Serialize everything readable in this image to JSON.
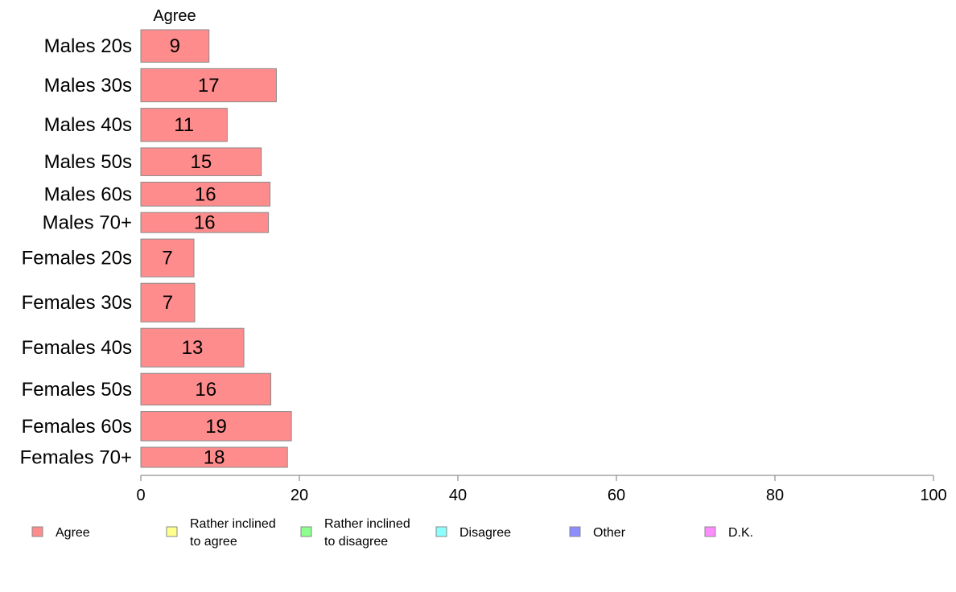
{
  "chart_data": {
    "type": "bar",
    "orientation": "horizontal",
    "stacked": true,
    "segment_label": "Agree",
    "categories": [
      "Males 20s",
      "Males 30s",
      "Males 40s",
      "Males 50s",
      "Males 60s",
      "Males 70+",
      "Females 20s",
      "Females 30s",
      "Females 40s",
      "Females 50s",
      "Females 60s",
      "Females 70+"
    ],
    "relative_widths": [
      42,
      43,
      43,
      36,
      31,
      26,
      49,
      50,
      50,
      41,
      38,
      26
    ],
    "series": [
      {
        "name": "Agree",
        "values": [
          8.6,
          17.1,
          10.9,
          15.2,
          16.3,
          16.1,
          6.7,
          6.8,
          13.0,
          16.4,
          19.0,
          18.5
        ],
        "labels": [
          "9",
          "17",
          "11",
          "15",
          "16",
          "16",
          "7",
          "7",
          "13",
          "16",
          "19",
          "18"
        ],
        "color": "#ff8c8c"
      }
    ],
    "xlim": [
      0,
      100
    ],
    "xticks": [
      "0",
      "20",
      "40",
      "60",
      "80",
      "100"
    ],
    "legend": {
      "placement": "bottom",
      "items": [
        {
          "lines": [
            "Agree"
          ],
          "color": "#ff8c8c"
        },
        {
          "lines": [
            "Rather inclined",
            "to agree"
          ],
          "color": "#ffff8c"
        },
        {
          "lines": [
            "Rather inclined",
            "to disagree"
          ],
          "color": "#8cff8c"
        },
        {
          "lines": [
            "Disagree"
          ],
          "color": "#8cffff"
        },
        {
          "lines": [
            "Other"
          ],
          "color": "#8c8cff"
        },
        {
          "lines": [
            "D.K."
          ],
          "color": "#ff8cff"
        }
      ]
    }
  }
}
